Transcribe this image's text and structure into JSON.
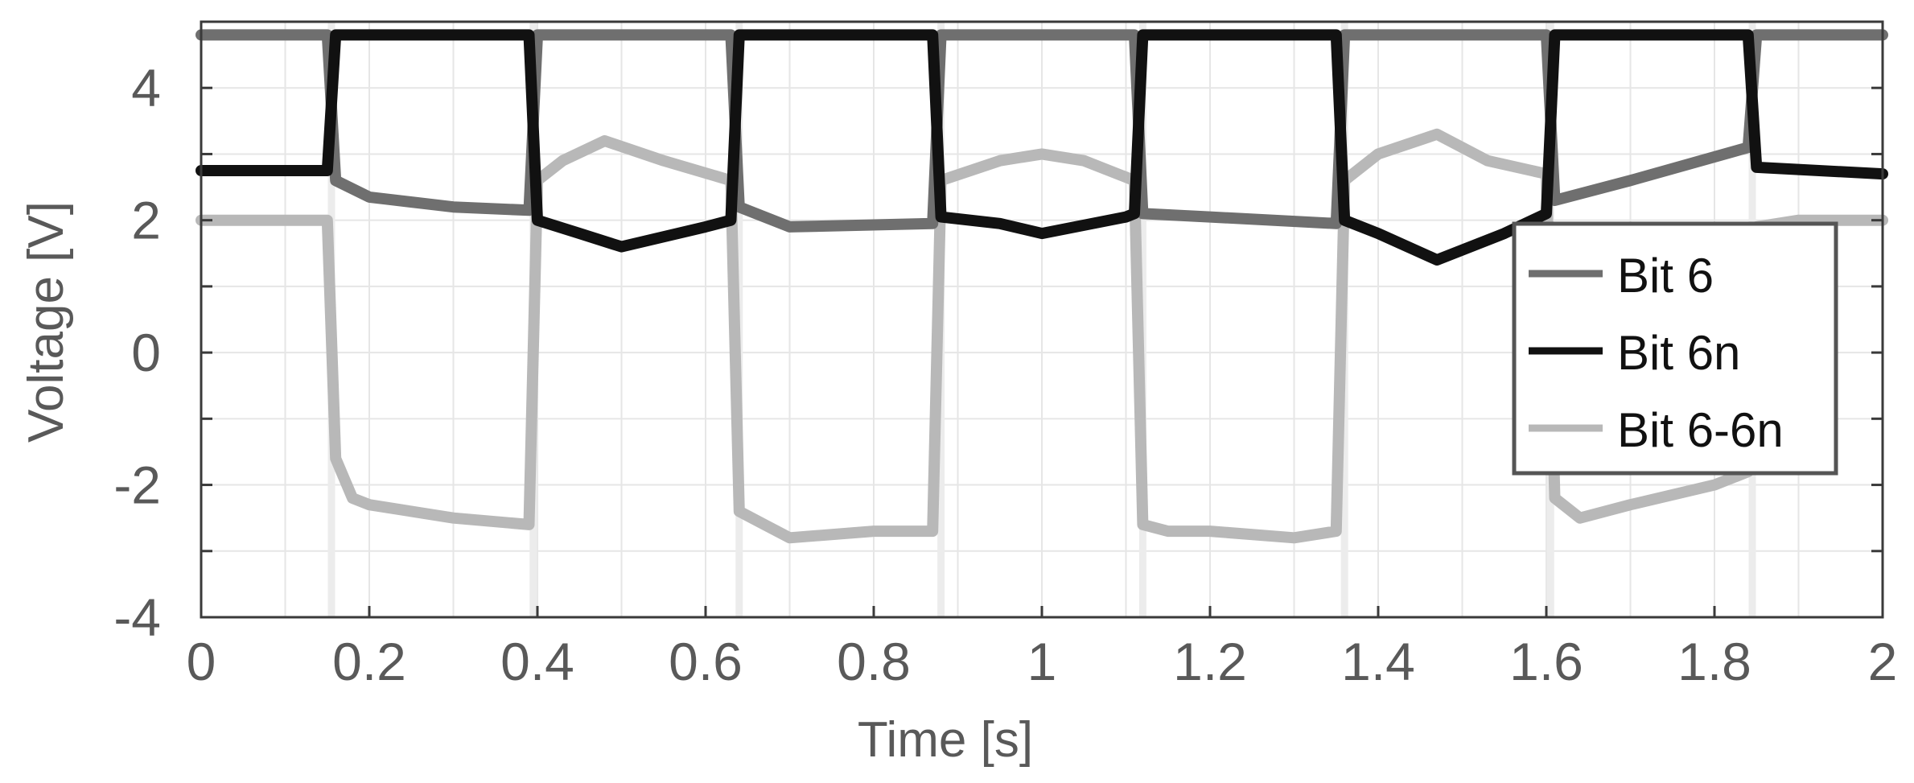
{
  "chart_data": {
    "type": "line",
    "xlabel": "Time [s]",
    "ylabel": "Voltage [V]",
    "xlim": [
      0,
      2
    ],
    "ylim": [
      -4,
      5
    ],
    "xticks": [
      0,
      0.2,
      0.4,
      0.6,
      0.8,
      1,
      1.2,
      1.4,
      1.6,
      1.8,
      2
    ],
    "xtick_labels": [
      "0",
      "0.2",
      "0.4",
      "0.6",
      "0.8",
      "1",
      "1.2",
      "1.4",
      "1.6",
      "1.8",
      "2"
    ],
    "yticks": [
      -4,
      -2,
      0,
      2,
      4
    ],
    "ytick_labels": [
      "-4",
      "-2",
      "0",
      "2",
      "4"
    ],
    "grid": true,
    "legend_position": "right",
    "transitions_s": [
      0.155,
      0.395,
      0.64,
      0.88,
      1.12,
      1.36,
      1.605,
      1.845
    ],
    "series": [
      {
        "name": "Bit 6",
        "color": "#6f6f6f",
        "x": [
          0,
          0.15,
          0.16,
          0.2,
          0.3,
          0.39,
          0.4,
          0.5,
          0.63,
          0.64,
          0.7,
          0.87,
          0.88,
          1.0,
          1.11,
          1.12,
          1.2,
          1.35,
          1.36,
          1.5,
          1.6,
          1.61,
          1.7,
          1.84,
          1.85,
          2.0
        ],
        "values": [
          4.8,
          4.8,
          2.6,
          2.35,
          2.2,
          2.15,
          4.8,
          4.8,
          4.8,
          2.2,
          1.9,
          1.95,
          4.8,
          4.8,
          4.8,
          2.1,
          2.05,
          1.95,
          4.8,
          4.8,
          4.8,
          2.3,
          2.6,
          3.1,
          4.8,
          4.8
        ]
      },
      {
        "name": "Bit 6n",
        "color": "#111111",
        "x": [
          0,
          0.15,
          0.16,
          0.2,
          0.3,
          0.39,
          0.4,
          0.45,
          0.5,
          0.6,
          0.63,
          0.64,
          0.7,
          0.87,
          0.88,
          0.95,
          1.0,
          1.1,
          1.11,
          1.12,
          1.2,
          1.35,
          1.36,
          1.4,
          1.47,
          1.55,
          1.6,
          1.61,
          1.7,
          1.84,
          1.85,
          2.0
        ],
        "values": [
          2.75,
          2.75,
          4.8,
          4.8,
          4.8,
          4.8,
          2.0,
          1.8,
          1.6,
          1.9,
          2.0,
          4.8,
          4.8,
          4.8,
          2.05,
          1.95,
          1.8,
          2.05,
          2.1,
          4.8,
          4.8,
          4.8,
          2.0,
          1.8,
          1.4,
          1.8,
          2.1,
          4.8,
          4.8,
          4.8,
          2.8,
          2.7
        ]
      },
      {
        "name": "Bit 6-6n",
        "color": "#b8b8b8",
        "x": [
          0,
          0.15,
          0.16,
          0.18,
          0.2,
          0.3,
          0.39,
          0.4,
          0.43,
          0.48,
          0.55,
          0.63,
          0.64,
          0.67,
          0.7,
          0.8,
          0.87,
          0.88,
          0.95,
          1.0,
          1.05,
          1.11,
          1.12,
          1.15,
          1.2,
          1.3,
          1.35,
          1.36,
          1.4,
          1.47,
          1.53,
          1.6,
          1.61,
          1.64,
          1.7,
          1.8,
          1.84,
          1.85,
          1.9,
          2.0
        ],
        "values": [
          2.0,
          2.0,
          -1.6,
          -2.2,
          -2.3,
          -2.5,
          -2.6,
          2.6,
          2.9,
          3.2,
          2.9,
          2.6,
          -2.4,
          -2.6,
          -2.8,
          -2.7,
          -2.7,
          2.6,
          2.9,
          3.0,
          2.9,
          2.6,
          -2.6,
          -2.7,
          -2.7,
          -2.8,
          -2.7,
          2.6,
          3.0,
          3.3,
          2.9,
          2.7,
          -2.2,
          -2.5,
          -2.3,
          -2.0,
          -1.8,
          1.9,
          2.0,
          2.0
        ]
      }
    ]
  }
}
